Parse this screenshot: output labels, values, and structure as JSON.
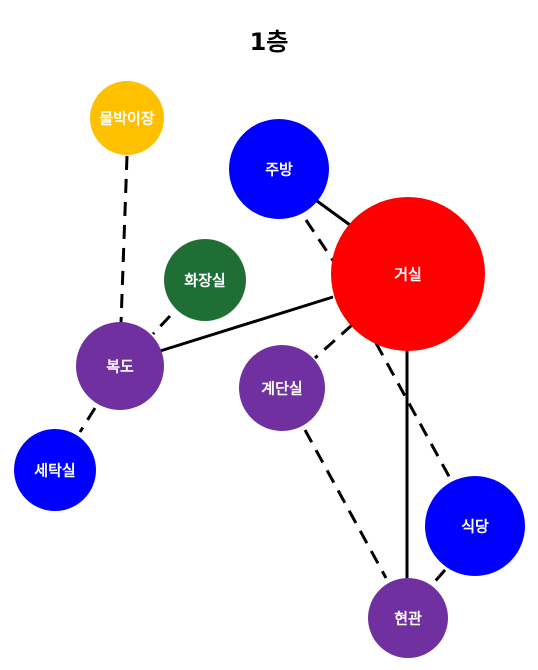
{
  "title": "1층",
  "nodes": {
    "living": {
      "label": "거실",
      "color": "#ff0000"
    },
    "kitchen": {
      "label": "주방",
      "color": "#0000ff"
    },
    "storage": {
      "label": "물박이장",
      "color": "#ffc000"
    },
    "bathroom": {
      "label": "화장실",
      "color": "#1e6e36"
    },
    "hallway": {
      "label": "복도",
      "color": "#7030a0"
    },
    "stairs": {
      "label": "계단실",
      "color": "#7030a0"
    },
    "laundry": {
      "label": "세탁실",
      "color": "#0000ff"
    },
    "dining": {
      "label": "식당",
      "color": "#0000ff"
    },
    "entrance": {
      "label": "현관",
      "color": "#7030a0"
    }
  },
  "edges": [
    {
      "from": "kitchen",
      "to": "living",
      "style": "solid"
    },
    {
      "from": "kitchen",
      "to": "living",
      "style": "dashed"
    },
    {
      "from": "hallway",
      "to": "living",
      "style": "solid"
    },
    {
      "from": "living",
      "to": "stairs",
      "style": "dashed"
    },
    {
      "from": "living",
      "to": "entrance",
      "style": "solid"
    },
    {
      "from": "living",
      "to": "dining",
      "style": "dashed"
    },
    {
      "from": "storage",
      "to": "hallway",
      "style": "dashed"
    },
    {
      "from": "bathroom",
      "to": "hallway",
      "style": "dashed"
    },
    {
      "from": "hallway",
      "to": "laundry",
      "style": "dashed"
    },
    {
      "from": "stairs",
      "to": "entrance",
      "style": "dashed"
    },
    {
      "from": "dining",
      "to": "entrance",
      "style": "dashed"
    }
  ]
}
